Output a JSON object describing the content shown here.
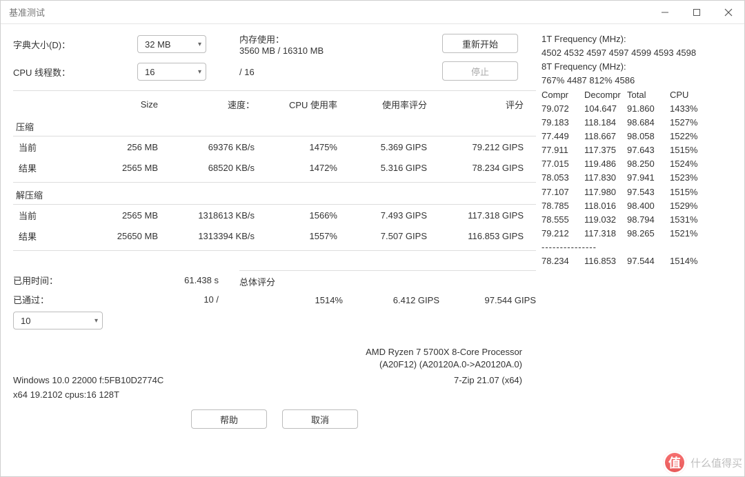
{
  "window": {
    "title": "基准测试"
  },
  "controls": {
    "dict_label": "字典大小(D)：",
    "dict_value": "32 MB",
    "threads_label": "CPU 线程数：",
    "threads_value": "16",
    "threads_total": "/ 16",
    "mem_label": "内存使用：",
    "mem_value": "3560 MB / 16310 MB",
    "restart": "重新开始",
    "stop": "停止"
  },
  "table": {
    "headers": {
      "size": "Size",
      "speed": "速度：",
      "cpu": "CPU 使用率",
      "rating": "使用率评分",
      "score": "评分"
    },
    "compress_title": "压缩",
    "decompress_title": "解压缩",
    "compress": {
      "current": {
        "label": "当前",
        "size": "256 MB",
        "speed": "69376 KB/s",
        "cpu": "1475%",
        "rating": "5.369 GIPS",
        "score": "79.212 GIPS"
      },
      "result": {
        "label": "结果",
        "size": "2565 MB",
        "speed": "68520 KB/s",
        "cpu": "1472%",
        "rating": "5.316 GIPS",
        "score": "78.234 GIPS"
      }
    },
    "decompress": {
      "current": {
        "label": "当前",
        "size": "2565 MB",
        "speed": "1318613 KB/s",
        "cpu": "1566%",
        "rating": "7.493 GIPS",
        "score": "117.318 GIPS"
      },
      "result": {
        "label": "结果",
        "size": "25650 MB",
        "speed": "1313394 KB/s",
        "cpu": "1557%",
        "rating": "7.507 GIPS",
        "score": "116.853 GIPS"
      }
    }
  },
  "bottom": {
    "elapsed_label": "已用时间：",
    "elapsed_value": "61.438 s",
    "passed_label": "已通过：",
    "passed_value": "10 /",
    "passes_select": "10",
    "overall_title": "总体评分",
    "overall": {
      "cpu": "1514%",
      "rating": "6.412 GIPS",
      "score": "97.544 GIPS"
    }
  },
  "sys": {
    "cpu_line1": "AMD Ryzen 7 5700X 8-Core Processor",
    "cpu_line2": "(A20F12) (A20120A.0->A20120A.0)",
    "os": "Windows 10.0 22000   f:5FB10D2774C",
    "app": "7-Zip 21.07 (x64)",
    "arch": "x64 19.2102 cpus:16 128T"
  },
  "buttons": {
    "help": "帮助",
    "cancel": "取消"
  },
  "side": {
    "t1_label": "1T Frequency (MHz):",
    "t1_values": " 4502 4532 4597 4597 4599 4593 4598",
    "t8_label": "8T Frequency (MHz):",
    "t8_values": " 767% 4487 812% 4586",
    "cols": {
      "c1": "Compr",
      "c2": "Decompr",
      "c3": "Total",
      "c4": "CPU"
    },
    "rows": [
      [
        "79.072",
        "104.647",
        "91.860",
        "1433%"
      ],
      [
        "79.183",
        "118.184",
        "98.684",
        "1527%"
      ],
      [
        "77.449",
        "118.667",
        "98.058",
        "1522%"
      ],
      [
        "77.911",
        "117.375",
        "97.643",
        "1515%"
      ],
      [
        "77.015",
        "119.486",
        "98.250",
        "1524%"
      ],
      [
        "78.053",
        "117.830",
        "97.941",
        "1523%"
      ],
      [
        "77.107",
        "117.980",
        "97.543",
        "1515%"
      ],
      [
        "78.785",
        "118.016",
        "98.400",
        "1529%"
      ],
      [
        "78.555",
        "119.032",
        "98.794",
        "1531%"
      ],
      [
        "79.212",
        "117.318",
        "98.265",
        "1521%"
      ]
    ],
    "summary": [
      "78.234",
      "116.853",
      "97.544",
      "1514%"
    ]
  },
  "watermark": "什么值得买"
}
